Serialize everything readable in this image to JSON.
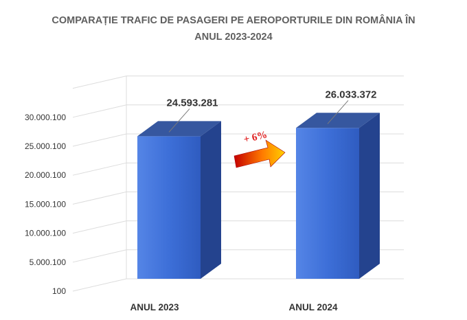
{
  "chart_data": {
    "type": "bar",
    "title_line1": "COMPARAȚIE TRAFIC DE PASAGERI PE AEROPORTURILE DIN ROMÂNIA ÎN",
    "title_line2": "ANUL 2023-2024",
    "categories": [
      "ANUL 2023",
      "ANUL 2024"
    ],
    "values": [
      24593281,
      26033372
    ],
    "data_labels": [
      "24.593.281",
      "26.033.372"
    ],
    "y_ticks": [
      "100",
      "5.000.100",
      "10.000.100",
      "15.000.100",
      "20.000.100",
      "25.000.100",
      "30.000.100"
    ],
    "y_tick_values": [
      100,
      5000100,
      10000100,
      15000100,
      20000100,
      25000100,
      30000100
    ],
    "ylim": [
      100,
      35000100
    ],
    "annotation": "+ 6%",
    "grid": true,
    "bar_color": "#3c6fd6",
    "arrow_colors": [
      "#c40000",
      "#ff7a00",
      "#ffd000"
    ]
  }
}
